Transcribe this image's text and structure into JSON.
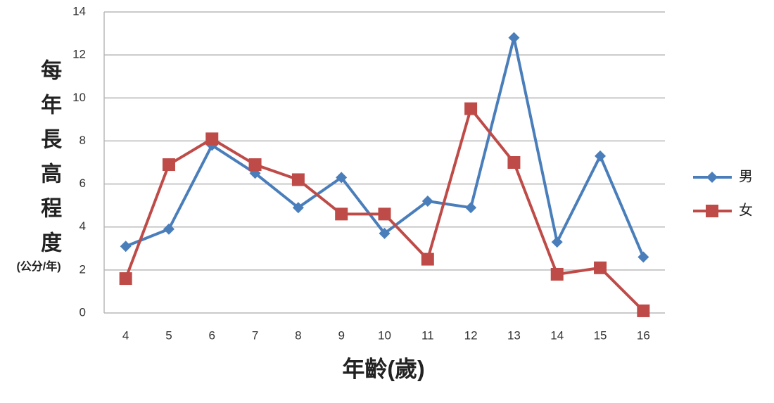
{
  "chart_data": {
    "type": "line",
    "ylabel": "每年長高程度",
    "ylabel_unit": "(公分/年)",
    "xlabel": "年齡(歲)",
    "x": [
      4,
      5,
      6,
      7,
      8,
      9,
      10,
      11,
      12,
      13,
      14,
      15,
      16
    ],
    "xlim": [
      3.5,
      16.5
    ],
    "series": [
      {
        "name": "男",
        "color": "#4a7ebb",
        "marker": "diamond",
        "values": [
          3.1,
          3.9,
          7.8,
          6.5,
          4.9,
          6.3,
          3.7,
          5.2,
          4.9,
          12.8,
          3.3,
          7.3,
          2.6
        ]
      },
      {
        "name": "女",
        "color": "#be4b48",
        "marker": "square",
        "values": [
          1.6,
          6.9,
          8.1,
          6.9,
          6.2,
          4.6,
          4.6,
          2.5,
          9.5,
          7.0,
          1.8,
          2.1,
          0.1
        ]
      }
    ],
    "ylim": [
      0,
      14
    ],
    "yticks": [
      0,
      2,
      4,
      6,
      8,
      10,
      12,
      14
    ],
    "grid": true,
    "legend": "right"
  }
}
